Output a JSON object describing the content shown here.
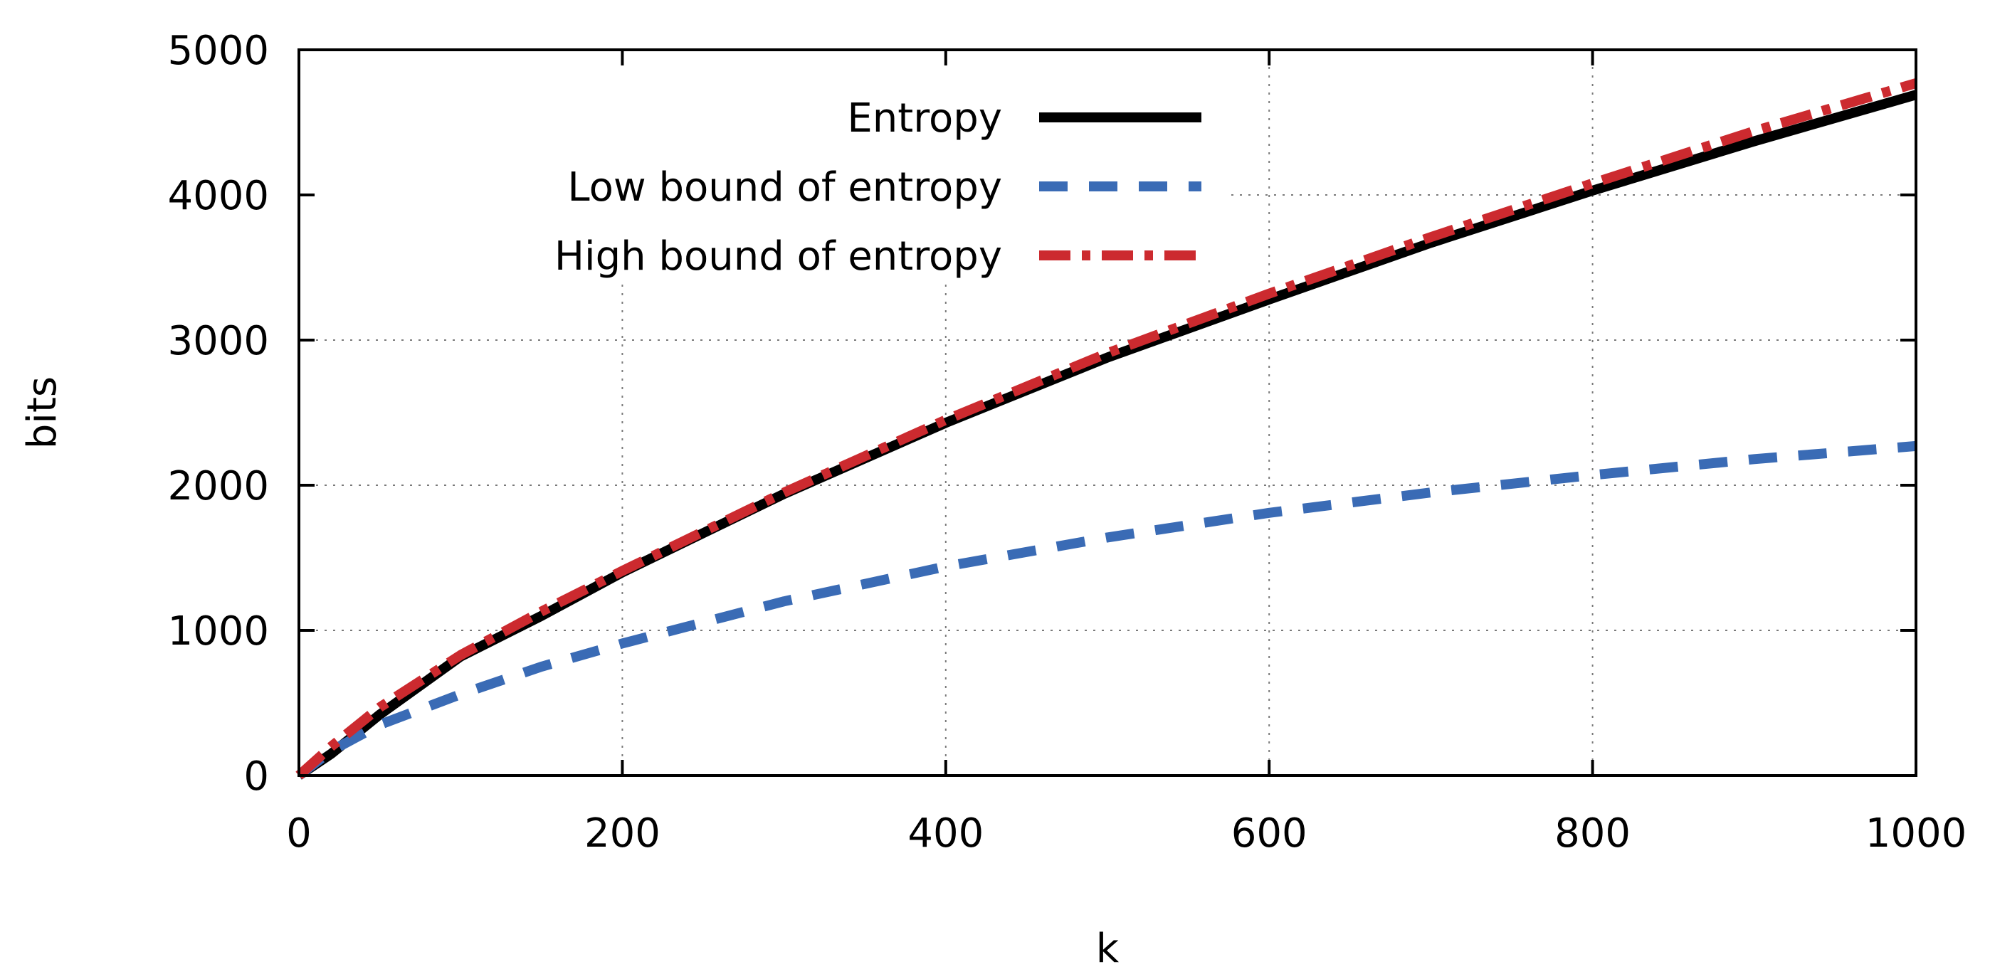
{
  "chart_data": {
    "type": "line",
    "title": "",
    "xlabel": "k",
    "ylabel": "bits",
    "xlim": [
      0,
      1000
    ],
    "ylim": [
      0,
      5000
    ],
    "xticks": [
      0,
      200,
      400,
      600,
      800,
      1000
    ],
    "yticks": [
      0,
      1000,
      2000,
      3000,
      4000,
      5000
    ],
    "grid": true,
    "legend_position": "top-center",
    "x": [
      0,
      20,
      50,
      100,
      150,
      200,
      300,
      400,
      500,
      600,
      700,
      800,
      900,
      1000
    ],
    "series": [
      {
        "name": "Entropy",
        "color": "#000000",
        "style": "solid",
        "values": [
          0,
          150,
          420,
          820,
          1100,
          1400,
          1940,
          2430,
          2880,
          3280,
          3670,
          4030,
          4370,
          4690
        ]
      },
      {
        "name": "Low bound of entropy",
        "color": "#3a6bb5",
        "style": "dashed",
        "values": [
          0,
          170,
          350,
          560,
          750,
          910,
          1200,
          1440,
          1640,
          1810,
          1950,
          2070,
          2180,
          2270
        ]
      },
      {
        "name": "High bound of entropy",
        "color": "#cc2a2f",
        "style": "dashdot",
        "values": [
          0,
          200,
          470,
          830,
          1130,
          1410,
          1950,
          2450,
          2910,
          3320,
          3710,
          4080,
          4440,
          4770
        ]
      }
    ]
  }
}
